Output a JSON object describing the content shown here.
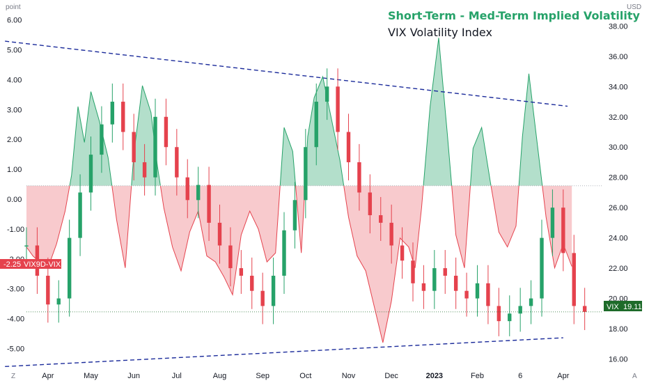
{
  "chart_data": {
    "type": "line",
    "title": "Short-Term - Med-Term Implied Volatility",
    "subtitle": "VIX Volatility Index",
    "left_axis": {
      "unit_label": "point",
      "range": [
        -5.5,
        6.2
      ],
      "ticks": [
        "6.00",
        "5.00",
        "4.00",
        "3.00",
        "2.00",
        "1.00",
        "0.00",
        "-1.00",
        "-2.00",
        "-3.00",
        "-4.00",
        "-5.00"
      ],
      "tick_values": [
        6,
        5,
        4,
        3,
        2,
        1,
        0,
        -1,
        -2,
        -3,
        -4,
        -5
      ]
    },
    "right_axis": {
      "unit_label": "USD",
      "range": [
        15.7,
        38.8
      ],
      "ticks": [
        "38.00",
        "36.00",
        "34.00",
        "32.00",
        "30.00",
        "28.00",
        "26.00",
        "24.00",
        "22.00",
        "20.00",
        "18.00",
        "16.00"
      ],
      "tick_values": [
        38,
        36,
        34,
        32,
        30,
        28,
        26,
        24,
        22,
        20,
        18,
        16
      ]
    },
    "x_axis": {
      "range": [
        0,
        13.2
      ],
      "tick_labels": [
        "Apr",
        "May",
        "Jun",
        "Jul",
        "Aug",
        "Sep",
        "Oct",
        "Nov",
        "Dec",
        "2023",
        "Feb",
        "6",
        "Apr"
      ],
      "tick_positions": [
        0.5,
        1.5,
        2.5,
        3.5,
        4.5,
        5.5,
        6.5,
        7.5,
        8.5,
        9.5,
        10.5,
        11.5,
        12.5
      ],
      "bold_labels": [
        "2023"
      ]
    },
    "series": [
      {
        "name": "VIX9D-VIX",
        "axis": "left",
        "baseline": 0.45,
        "current_value": "-2.25",
        "color_above": "#26a269",
        "color_below": "#e5424d",
        "x": [
          0,
          0.15,
          0.3,
          0.5,
          0.7,
          0.9,
          1.05,
          1.2,
          1.35,
          1.5,
          1.7,
          1.9,
          2.1,
          2.3,
          2.5,
          2.7,
          2.9,
          3.05,
          3.2,
          3.4,
          3.6,
          3.8,
          4.0,
          4.2,
          4.4,
          4.6,
          4.8,
          5.0,
          5.2,
          5.4,
          5.6,
          5.8,
          6.0,
          6.2,
          6.4,
          6.55,
          6.7,
          6.9,
          7.1,
          7.3,
          7.5,
          7.7,
          7.9,
          8.1,
          8.3,
          8.5,
          8.7,
          8.9,
          9.05,
          9.2,
          9.4,
          9.6,
          9.8,
          10.0,
          10.2,
          10.4,
          10.6,
          10.8,
          11.0,
          11.2,
          11.4,
          11.55,
          11.7,
          11.9,
          12.1,
          12.3,
          12.5,
          12.7
        ],
        "y": [
          -1.6,
          -1.9,
          -2.1,
          -2.3,
          -1.5,
          -0.4,
          0.8,
          3.1,
          1.9,
          3.6,
          2.6,
          1.4,
          -0.7,
          -2.3,
          1.5,
          3.8,
          2.9,
          1.1,
          -0.3,
          -1.6,
          -2.4,
          -1.1,
          -0.4,
          -1.9,
          -2.1,
          -2.6,
          -3.2,
          -1.2,
          -0.4,
          -1.0,
          -2.1,
          -1.8,
          2.4,
          1.6,
          -1.8,
          2.1,
          3.4,
          4.1,
          2.7,
          1.3,
          -0.6,
          -1.9,
          -2.4,
          -3.6,
          -4.8,
          -3.4,
          -1.3,
          -1.6,
          -2.3,
          -0.3,
          3.1,
          5.4,
          2.2,
          -1.2,
          -2.3,
          1.7,
          2.4,
          0.6,
          -1.1,
          -1.6,
          -0.9,
          2.1,
          4.2,
          1.8,
          -0.6,
          -2.3,
          -1.5,
          -2.25
        ]
      },
      {
        "name": "VIX",
        "axis": "right",
        "type": "candlestick",
        "current_value": "19.11",
        "color_up": "#26a269",
        "color_down": "#e5424d",
        "x": [
          0,
          0.25,
          0.5,
          0.75,
          1.0,
          1.25,
          1.5,
          1.75,
          2.0,
          2.25,
          2.5,
          2.75,
          3.0,
          3.25,
          3.5,
          3.75,
          4.0,
          4.25,
          4.5,
          4.75,
          5.0,
          5.25,
          5.5,
          5.75,
          6.0,
          6.25,
          6.5,
          6.75,
          7.0,
          7.25,
          7.5,
          7.75,
          8.0,
          8.25,
          8.5,
          8.75,
          9.0,
          9.25,
          9.5,
          9.75,
          10.0,
          10.25,
          10.5,
          10.75,
          11.0,
          11.25,
          11.5,
          11.75,
          12.0,
          12.25,
          12.5,
          12.75,
          13.0
        ],
        "close": [
          23.5,
          21.5,
          19.6,
          20.0,
          24.0,
          27.0,
          29.5,
          31.5,
          33.0,
          31.0,
          29.0,
          28.0,
          32.0,
          30.0,
          28.0,
          26.5,
          27.5,
          25.0,
          23.5,
          22.0,
          21.5,
          20.5,
          19.5,
          21.5,
          24.5,
          26.5,
          30.0,
          33.0,
          34.0,
          31.0,
          29.0,
          27.0,
          25.5,
          25.0,
          23.5,
          22.5,
          21.0,
          20.5,
          22.0,
          21.5,
          20.5,
          20.0,
          21.0,
          19.5,
          18.5,
          19.0,
          19.5,
          20.0,
          24.0,
          26.0,
          23.0,
          19.5,
          19.11
        ],
        "range_min": 17.5,
        "range_max": 36.5
      }
    ],
    "reference_lines": [
      {
        "label": "upper trend",
        "style": "dashed",
        "color": "#1a2a9a",
        "from": [
          -0.5,
          37.0
        ],
        "to": [
          12.6,
          32.7
        ],
        "axis": "right"
      },
      {
        "label": "lower trend",
        "style": "dashed",
        "color": "#1a2a9a",
        "from": [
          -0.5,
          15.5
        ],
        "to": [
          12.5,
          17.4
        ],
        "axis": "right"
      }
    ],
    "grid": false
  }
}
